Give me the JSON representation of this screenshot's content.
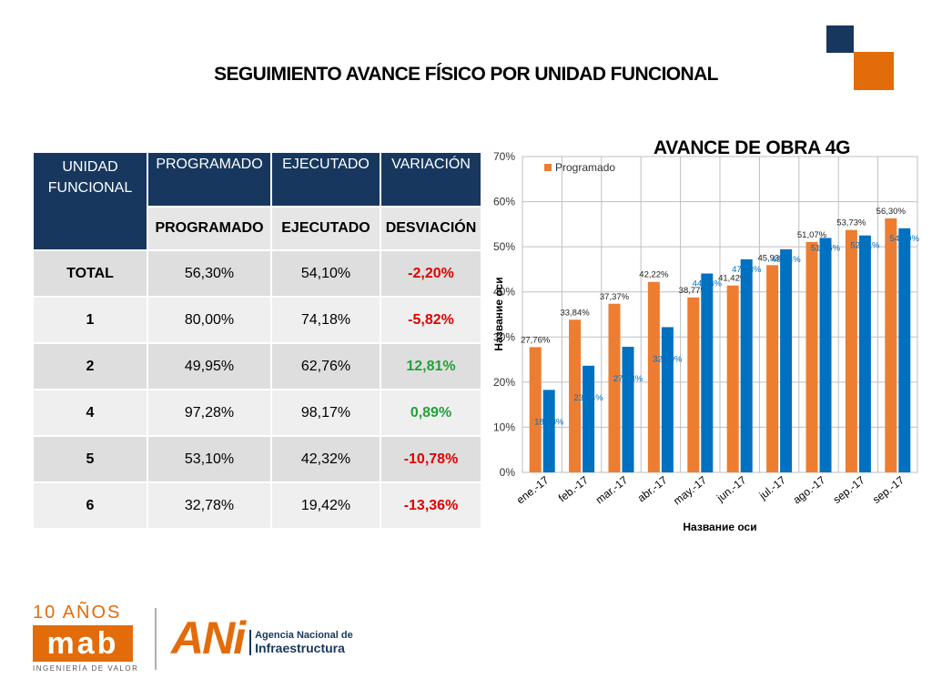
{
  "slide": {
    "title": "SEGUIMIENTO AVANCE FÍSICO  POR UNIDAD FUNCIONAL"
  },
  "table": {
    "header": {
      "col1": "UNIDAD FUNCIONAL",
      "col2": "PROGRAMADO",
      "col3": "EJECUTADO",
      "col4": "VARIACIÓN"
    },
    "subheader": {
      "col2": "PROGRAMADO",
      "col3": "EJECUTADO",
      "col4": "DESVIACIÓN"
    },
    "rows": [
      {
        "unit": "TOTAL",
        "programado": "56,30%",
        "ejecutado": "54,10%",
        "desviacion": "-2,20%"
      },
      {
        "unit": "1",
        "programado": "80,00%",
        "ejecutado": "74,18%",
        "desviacion": "-5,82%"
      },
      {
        "unit": "2",
        "programado": "49,95%",
        "ejecutado": "62,76%",
        "desviacion": "12,81%"
      },
      {
        "unit": "4",
        "programado": "97,28%",
        "ejecutado": "98,17%",
        "desviacion": "0,89%"
      },
      {
        "unit": "5",
        "programado": "53,10%",
        "ejecutado": "42,32%",
        "desviacion": "-10,78%"
      },
      {
        "unit": "6",
        "programado": "32,78%",
        "ejecutado": "19,42%",
        "desviacion": "-13,36%"
      }
    ]
  },
  "logos": {
    "mab_years": "10 AÑOS",
    "mab_mark": "mab",
    "mab_tagline": "INGENIERÍA DE VALOR",
    "ani_mark": "ANi",
    "ani_line1": "Agencia Nacional de",
    "ani_line2": "Infraestructura"
  },
  "colors": {
    "navy": "#17375e",
    "orange": "#e36c0a",
    "programado_bar": "#ed7d31",
    "ejecutado_bar": "#0070c0",
    "negative": "#e00000",
    "positive": "#22a03a"
  },
  "chart_data": {
    "type": "bar",
    "title": "AVANCE DE OBRA 4G",
    "xlabel": "Название оси",
    "ylabel": "Название оси",
    "ylim": [
      0,
      70
    ],
    "yticks": [
      "0%",
      "10%",
      "20%",
      "30%",
      "40%",
      "50%",
      "60%",
      "70%"
    ],
    "grid": true,
    "legend_position": "top-left",
    "categories": [
      "ene.-17",
      "feb.-17",
      "mar.-17",
      "abr.-17",
      "may.-17",
      "jun.-17",
      "jul.-17",
      "ago.-17",
      "sep.-17",
      "sep.-17"
    ],
    "series": [
      {
        "name": "Programado",
        "color": "#ed7d31",
        "values": [
          27.76,
          33.84,
          37.37,
          42.22,
          38.77,
          41.42,
          45.93,
          51.07,
          53.73,
          56.3
        ],
        "labels": [
          "27,76%",
          "33,84%",
          "37,37%",
          "42,22%",
          "38,77%",
          "41,42%",
          "45,93%",
          "51,07%",
          "53,73%",
          "56,30%"
        ]
      },
      {
        "color": "#0070c0",
        "values": [
          18.28,
          23.64,
          27.83,
          32.19,
          44.08,
          47.23,
          49.44,
          51.96,
          52.51,
          54.1
        ],
        "labels": [
          "18,28%",
          "23,64%",
          "27,83%",
          "32,19%",
          "44,08%",
          "47,23%",
          "49,44%",
          "51,96%",
          "52,51%",
          "54,10%"
        ]
      }
    ]
  }
}
